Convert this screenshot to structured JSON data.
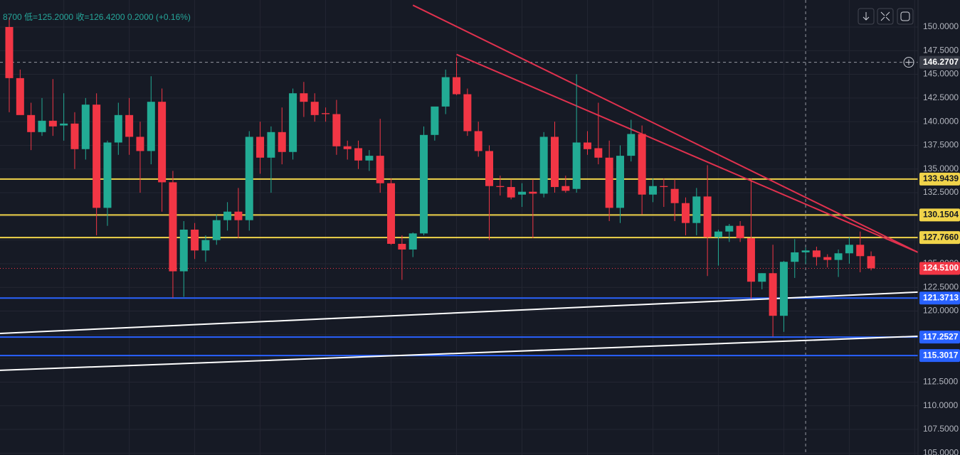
{
  "chart_data": {
    "type": "candlestick",
    "header": [
      "8700",
      "低=125.2000",
      "收=126.4200",
      "0.2000 (+0.16%)"
    ],
    "ylim": [
      104.8,
      152.85
    ],
    "yticks": [
      {
        "value": 150,
        "label": "150.0000"
      },
      {
        "value": 147.5,
        "label": "147.5000"
      },
      {
        "value": 145,
        "label": "145.0000"
      },
      {
        "value": 142.5,
        "label": "142.5000"
      },
      {
        "value": 140,
        "label": "140.0000"
      },
      {
        "value": 137.5,
        "label": "137.5000"
      },
      {
        "value": 135,
        "label": "135.0000"
      },
      {
        "value": 132.5,
        "label": "132.5000"
      },
      {
        "value": 130,
        "label": "130.0000"
      },
      {
        "value": 127.5,
        "label": "127.5000"
      },
      {
        "value": 125,
        "label": "125.0000"
      },
      {
        "value": 122.5,
        "label": "122.5000"
      },
      {
        "value": 120,
        "label": "120.0000"
      },
      {
        "value": 117.5,
        "label": "117.5000"
      },
      {
        "value": 115,
        "label": "115.0000"
      },
      {
        "value": 112.5,
        "label": "112.5000"
      },
      {
        "value": 110,
        "label": "110.0000"
      },
      {
        "value": 107.5,
        "label": "107.5000"
      },
      {
        "value": 105,
        "label": "105.0000"
      }
    ],
    "grid": true,
    "up_color": "#22ab94",
    "down_color": "#f23645",
    "candles": {
      "open": [
        150,
        144.6,
        140.7,
        138.9,
        140.1,
        139.6,
        139.8,
        137.1,
        141.8,
        130.9,
        137.8,
        140.7,
        138.4,
        136.9,
        142.1,
        133.6,
        124.2,
        128.6,
        126.4,
        127.5,
        129.6,
        130.5,
        129.6,
        138.4,
        136.2,
        138.9,
        136.8,
        143,
        142.1,
        140.9,
        140.8,
        137.4,
        137.2,
        135.9,
        136.4,
        133.5,
        127.1,
        126.5,
        128.2,
        138.6,
        141.6,
        144.7,
        142.9,
        139,
        136.9,
        133.2,
        133.1,
        132.3,
        132.6,
        132.4,
        138.4,
        133.2,
        132.9,
        137.8,
        137.2,
        136.2,
        130.9,
        136.4,
        138.7,
        132.3,
        133.2,
        132.9,
        131.4,
        129.3,
        132.1,
        127.8,
        128.4,
        129,
        127.7,
        123.1,
        124,
        119.5,
        125.2,
        126.2,
        126.4,
        125.7,
        125.4,
        126.1,
        127,
        125.8
      ],
      "high": [
        151,
        145.5,
        142,
        142.5,
        144.5,
        143,
        141,
        142.5,
        143,
        138,
        142,
        142.5,
        140,
        144.8,
        143.5,
        134.8,
        129.5,
        129.3,
        128,
        130.2,
        131.5,
        133,
        139,
        140,
        139.5,
        141.5,
        143.5,
        144.2,
        143,
        141.5,
        142.3,
        138,
        138,
        137,
        140.3,
        134,
        128,
        128.3,
        139.5,
        141.5,
        145.5,
        146.8,
        143.5,
        140,
        137.5,
        134.3,
        133.9,
        133.5,
        133.9,
        138.9,
        140,
        134.3,
        145,
        139,
        142,
        138,
        137.5,
        140.2,
        139.6,
        134,
        134,
        133.9,
        132,
        133,
        135.4,
        128.6,
        129.2,
        129.5,
        134,
        124,
        127,
        125.3,
        127.6,
        126.7,
        126.8,
        126,
        126.5,
        127.8,
        128.4,
        126.3
      ],
      "low": [
        141,
        141,
        137,
        138.5,
        138.5,
        138,
        135,
        136,
        128,
        129,
        136.5,
        136.5,
        132.5,
        135.5,
        130.5,
        121.4,
        121.5,
        125.5,
        125.2,
        127,
        128.5,
        127.7,
        128.5,
        134.5,
        132.5,
        135.5,
        136,
        140.5,
        140,
        140,
        136.5,
        136,
        135,
        134.8,
        132.5,
        127,
        123.3,
        125.7,
        128,
        138,
        140.8,
        142.8,
        138.5,
        136.3,
        127.5,
        132.2,
        131.8,
        131,
        127.7,
        132,
        132.5,
        132.5,
        132.5,
        136.5,
        135.5,
        129.5,
        129.3,
        135.8,
        130.2,
        131.5,
        131,
        129.5,
        128,
        128,
        123.7,
        124.8,
        127.3,
        127.3,
        121.3,
        122.3,
        117.3,
        117.8,
        123.5,
        125,
        124.8,
        124.6,
        123.6,
        125,
        124.1,
        124.3
      ],
      "close": [
        144.6,
        140.7,
        138.9,
        140.1,
        139.5,
        139.8,
        137.1,
        141.8,
        130.9,
        137.8,
        140.7,
        138.4,
        136.9,
        142.1,
        133.6,
        124.2,
        128.6,
        126.4,
        127.5,
        129.6,
        130.5,
        129.6,
        138.4,
        136.2,
        138.9,
        136.8,
        143,
        142.1,
        140.7,
        140.8,
        137.4,
        137.1,
        135.9,
        136.4,
        133.5,
        127.1,
        126.5,
        128.2,
        138.6,
        141.6,
        144.7,
        142.9,
        139,
        136.9,
        133.2,
        133.1,
        132,
        132.6,
        132.4,
        138.4,
        133.1,
        132.7,
        137.8,
        137.1,
        136.2,
        130.9,
        136.4,
        138.7,
        132.3,
        133.2,
        133.1,
        131.4,
        129.3,
        132.1,
        127.8,
        128.4,
        129,
        127.7,
        123.1,
        124,
        119.5,
        125.2,
        126.2,
        126.4,
        125.7,
        125.4,
        126.1,
        127,
        125.8,
        124.51
      ]
    },
    "levels": [
      {
        "value": 133.9439,
        "label": "133.9439",
        "color": "#f0d34a"
      },
      {
        "value": 130.1504,
        "label": "130.1504",
        "color": "#f0d34a"
      },
      {
        "value": 127.766,
        "label": "127.7660",
        "color": "#f0d34a"
      },
      {
        "value": 121.3713,
        "label": "121.3713",
        "color": "#2962ff"
      },
      {
        "value": 117.2527,
        "label": "117.2527",
        "color": "#2962ff"
      },
      {
        "value": 115.3017,
        "label": "115.3017",
        "color": "#2962ff"
      }
    ],
    "crosshair": {
      "value": 146.2707,
      "label": "146.2707"
    },
    "last_price": {
      "value": 124.51,
      "label": "124.5100",
      "color": "#f23645"
    },
    "trendlines": [
      {
        "x": [
          37,
          83.3
        ],
        "y": [
          152.3,
          126.2
        ],
        "color": "#e0314e"
      },
      {
        "x": [
          41,
          83.3
        ],
        "y": [
          147.1,
          126.2
        ],
        "color": "#e0314e"
      },
      {
        "x": [
          -0.85,
          83.3
        ],
        "y": [
          117.64,
          122.0
        ],
        "color": "#ffffff"
      },
      {
        "x": [
          -0.85,
          83.3
        ],
        "y": [
          113.74,
          117.34
        ],
        "color": "#ffffff"
      }
    ]
  }
}
